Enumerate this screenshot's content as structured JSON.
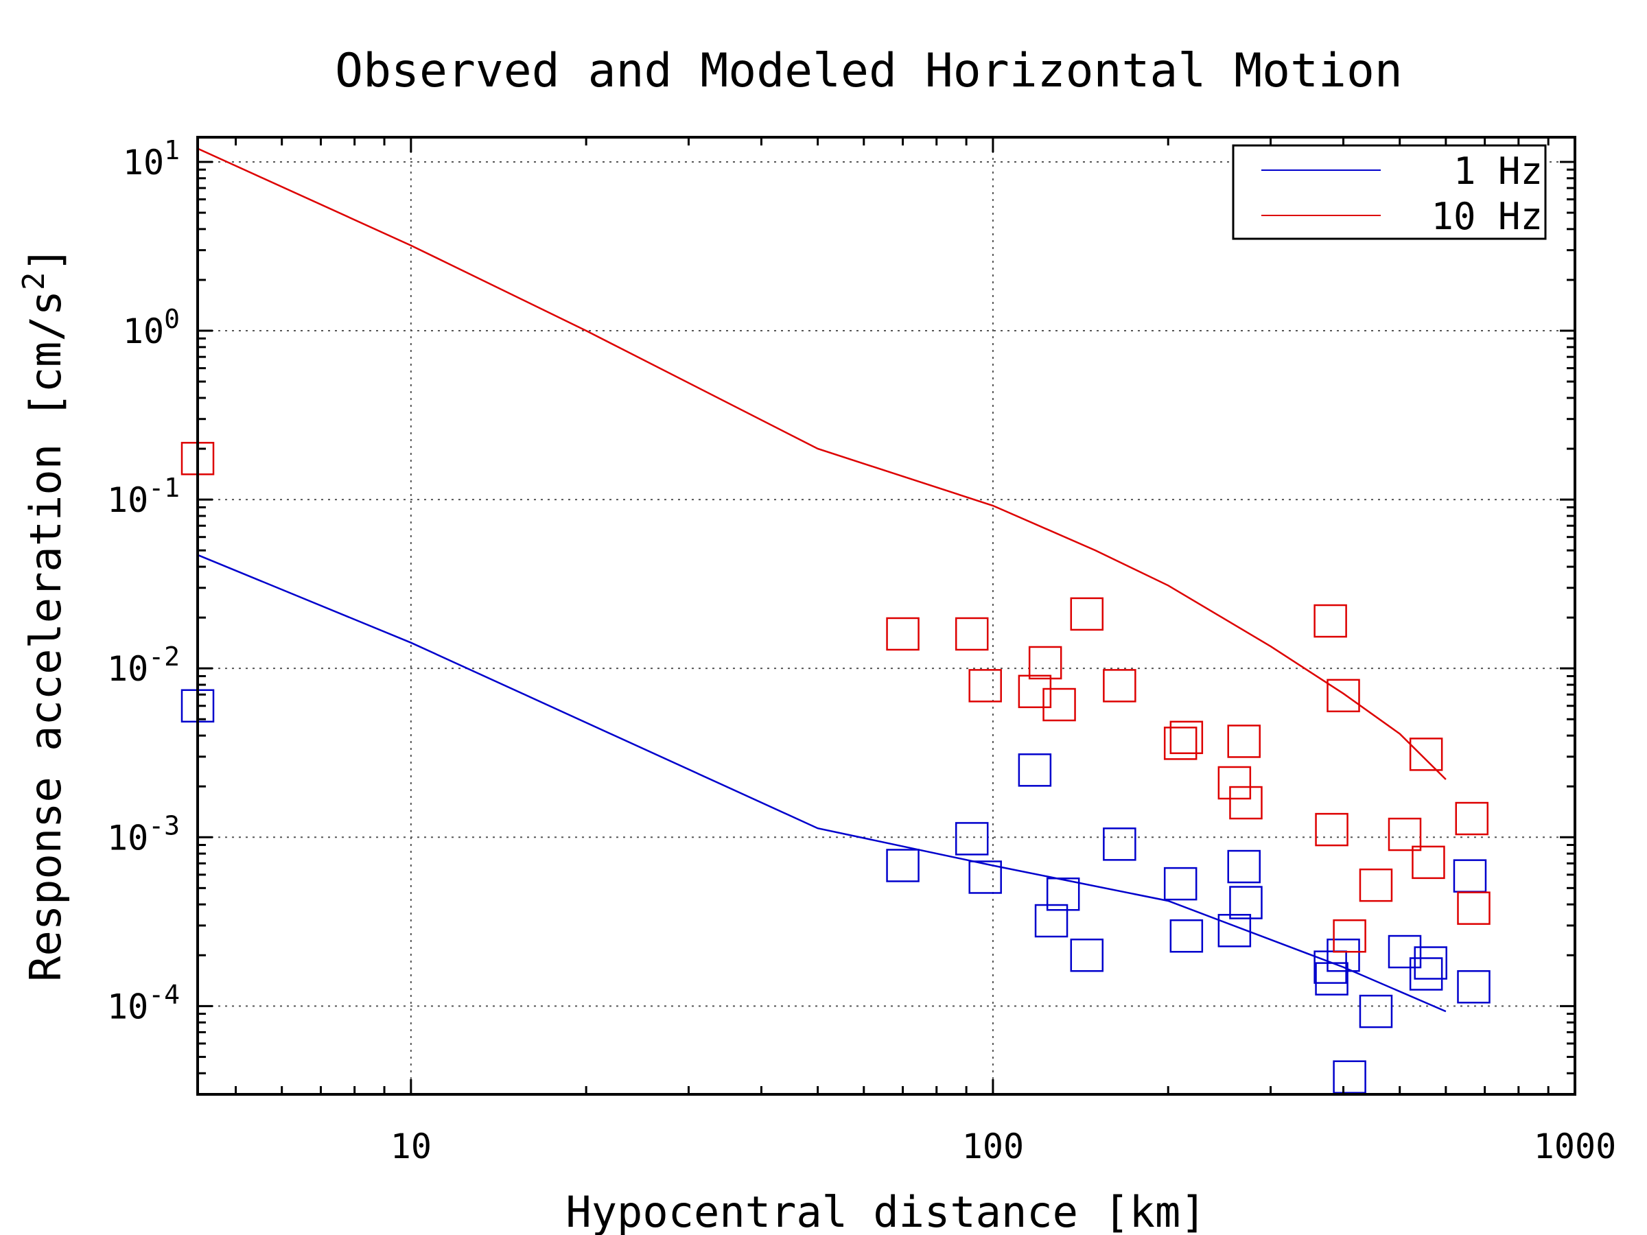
{
  "chart_data": {
    "type": "scatter",
    "title": "Observed and Modeled Horizontal Motion",
    "xlabel": "Hypocentral distance [km]",
    "ylabel": "Response acceleration [cm/s",
    "ylabel_sup": "2",
    "ylabel_close": "]",
    "xscale": "log",
    "yscale": "log",
    "xlim": [
      4.3,
      1000
    ],
    "ylim": [
      3e-05,
      14
    ],
    "grid": true,
    "legend_position": "top-right",
    "x_ticks": [
      {
        "value": 10,
        "label": "10"
      },
      {
        "value": 100,
        "label": "100"
      },
      {
        "value": 1000,
        "label": "1000"
      }
    ],
    "y_ticks": [
      {
        "value": 10,
        "base": "10",
        "exp": "1"
      },
      {
        "value": 1,
        "base": "10",
        "exp": "0"
      },
      {
        "value": 0.1,
        "base": "10",
        "exp": "-1"
      },
      {
        "value": 0.01,
        "base": "10",
        "exp": "-2"
      },
      {
        "value": 0.001,
        "base": "10",
        "exp": "-3"
      },
      {
        "value": 0.0001,
        "base": "10",
        "exp": "-4"
      }
    ],
    "series": [
      {
        "name": "1 Hz",
        "color": "#0000cc",
        "model_line": [
          [
            4.3,
            0.047
          ],
          [
            10,
            0.0142
          ],
          [
            50,
            0.00113
          ],
          [
            100,
            0.00068
          ],
          [
            200,
            0.00042
          ],
          [
            400,
            0.00017
          ],
          [
            600,
            9.3e-05
          ]
        ],
        "observed": [
          [
            4.3,
            0.006
          ],
          [
            70,
            0.00068
          ],
          [
            92,
            0.00098
          ],
          [
            97,
            0.00058
          ],
          [
            118,
            0.0025
          ],
          [
            126,
            0.00032
          ],
          [
            132,
            0.00046
          ],
          [
            145,
            0.0002
          ],
          [
            165,
            0.00091
          ],
          [
            210,
            0.00053
          ],
          [
            215,
            0.00026
          ],
          [
            260,
            0.00028
          ],
          [
            270,
            0.00067
          ],
          [
            272,
            0.00041
          ],
          [
            380,
            0.00017
          ],
          [
            382,
            0.000145
          ],
          [
            400,
            0.0002
          ],
          [
            410,
            3.8e-05
          ],
          [
            455,
            9.3e-05
          ],
          [
            510,
            0.00021
          ],
          [
            555,
            0.000155
          ],
          [
            565,
            0.00018
          ],
          [
            660,
            0.00059
          ],
          [
            670,
            0.00013
          ]
        ]
      },
      {
        "name": "10 Hz",
        "color": "#dd0000",
        "model_line": [
          [
            4.3,
            12
          ],
          [
            10,
            3.2
          ],
          [
            20,
            1.0
          ],
          [
            50,
            0.2
          ],
          [
            100,
            0.092
          ],
          [
            150,
            0.05
          ],
          [
            200,
            0.031
          ],
          [
            300,
            0.0135
          ],
          [
            400,
            0.0071
          ],
          [
            500,
            0.0041
          ],
          [
            600,
            0.0022
          ]
        ],
        "observed": [
          [
            4.3,
            0.175
          ],
          [
            70,
            0.016
          ],
          [
            92,
            0.016
          ],
          [
            97,
            0.0079
          ],
          [
            118,
            0.0073
          ],
          [
            123,
            0.0108
          ],
          [
            130,
            0.0061
          ],
          [
            145,
            0.021
          ],
          [
            165,
            0.0079
          ],
          [
            210,
            0.0036
          ],
          [
            215,
            0.0039
          ],
          [
            260,
            0.0021
          ],
          [
            270,
            0.0037
          ],
          [
            272,
            0.0016
          ],
          [
            380,
            0.0191
          ],
          [
            382,
            0.00111
          ],
          [
            400,
            0.0069
          ],
          [
            410,
            0.00026
          ],
          [
            455,
            0.00052
          ],
          [
            510,
            0.00104
          ],
          [
            555,
            0.0031
          ],
          [
            560,
            0.00071
          ],
          [
            665,
            0.00129
          ],
          [
            670,
            0.00038
          ]
        ]
      }
    ]
  }
}
